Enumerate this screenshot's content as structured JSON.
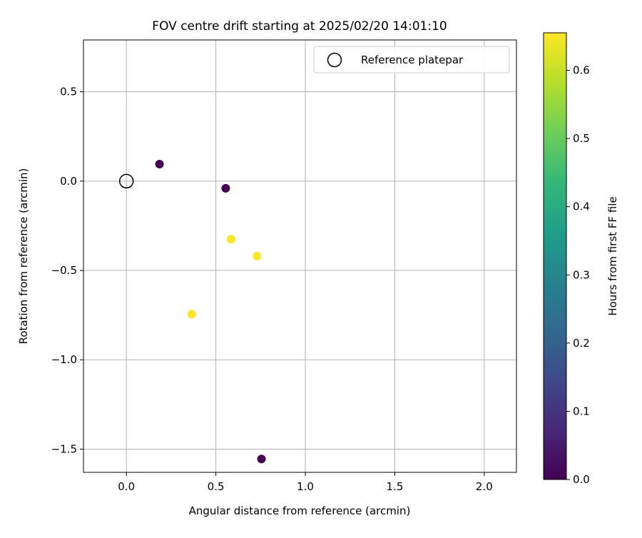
{
  "chart_data": {
    "type": "scatter",
    "title": "FOV centre drift starting at 2025/02/20 14:01:10",
    "xlabel": "Angular distance from reference (arcmin)",
    "ylabel": "Rotation from reference (arcmin)",
    "xlim": [
      -0.24,
      2.18
    ],
    "ylim": [
      -1.63,
      0.79
    ],
    "xticks": [
      0.0,
      0.5,
      1.0,
      1.5,
      2.0
    ],
    "xtick_labels": [
      "0.0",
      "0.5",
      "1.0",
      "1.5",
      "2.0"
    ],
    "yticks": [
      0.5,
      0.0,
      -0.5,
      -1.0,
      -1.5
    ],
    "ytick_labels": [
      "0.5",
      "0.0",
      "−0.5",
      "−1.0",
      "−1.5"
    ],
    "grid": true,
    "legend": {
      "location": "top-right",
      "entries": [
        "Reference platepar"
      ]
    },
    "reference_point": {
      "x": 0.0,
      "y": 0.0,
      "label": "Reference platepar"
    },
    "points": [
      {
        "x": 0.185,
        "y": 0.095,
        "hours": 0.0
      },
      {
        "x": 0.555,
        "y": -0.04,
        "hours": 0.0
      },
      {
        "x": 0.755,
        "y": -1.555,
        "hours": 0.0
      },
      {
        "x": 0.585,
        "y": -0.325,
        "hours": 0.655
      },
      {
        "x": 0.73,
        "y": -0.42,
        "hours": 0.655
      },
      {
        "x": 0.365,
        "y": -0.745,
        "hours": 0.655
      }
    ],
    "colorbar": {
      "label": "Hours from first FF file",
      "range": [
        0.0,
        0.655
      ],
      "ticks": [
        0.0,
        0.1,
        0.2,
        0.3,
        0.4,
        0.5,
        0.6
      ],
      "tick_labels": [
        "0.0",
        "0.1",
        "0.2",
        "0.3",
        "0.4",
        "0.5",
        "0.6"
      ],
      "colormap": "viridis",
      "colormap_stops": [
        "#440154",
        "#482878",
        "#3e4989",
        "#31688e",
        "#26828e",
        "#1f9e89",
        "#35b779",
        "#6ece58",
        "#b5de2b",
        "#fde725"
      ]
    }
  }
}
